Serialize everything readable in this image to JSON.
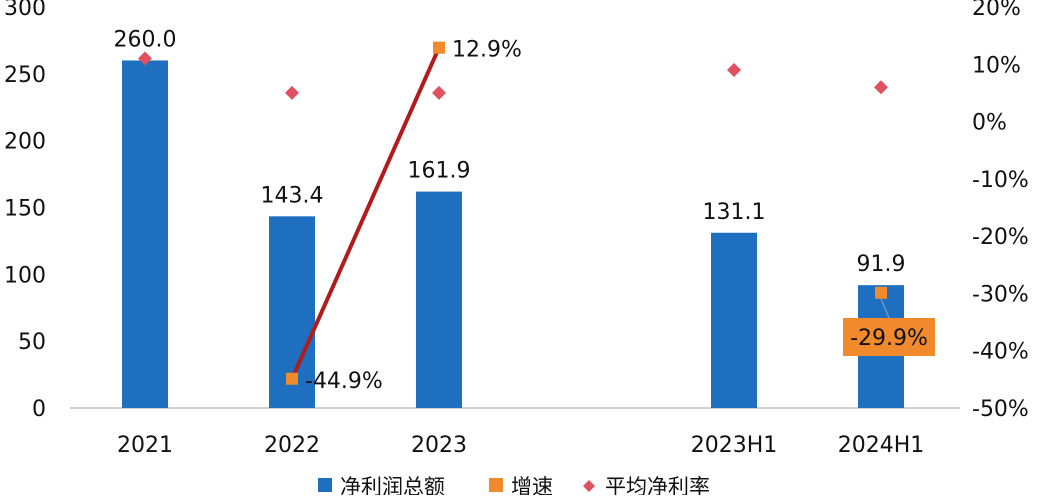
{
  "chart_data": {
    "type": "bar",
    "categories": [
      "2021",
      "2022",
      "2023",
      "2023H1",
      "2024H1"
    ],
    "series": [
      {
        "name": "净利润总额",
        "type": "bar",
        "axis": "left",
        "color": "#1f6fc0",
        "values": [
          260.0,
          143.4,
          161.9,
          131.1,
          91.9
        ],
        "labels": [
          "260.0",
          "143.4",
          "161.9",
          "131.1",
          "91.9"
        ]
      },
      {
        "name": "增速",
        "type": "line-markers",
        "axis": "right",
        "color": "#f08a2c",
        "line_color": "#b01c1c",
        "values": [
          null,
          -44.9,
          12.9,
          null,
          -29.9
        ],
        "labels": [
          "",
          "-44.9%",
          "12.9%",
          "",
          "-29.9%"
        ],
        "connect": [
          1,
          2
        ]
      },
      {
        "name": "平均净利率",
        "type": "scatter",
        "axis": "right",
        "color": "#e05060",
        "values": [
          11,
          5,
          5,
          9,
          6
        ]
      }
    ],
    "y_left": {
      "min": 0,
      "max": 300,
      "ticks": [
        "0",
        "50",
        "100",
        "150",
        "200",
        "250",
        "300"
      ]
    },
    "y_right": {
      "min": -50,
      "max": 20,
      "ticks": [
        "-50%",
        "-40%",
        "-30%",
        "-20%",
        "-10%",
        "0%",
        "10%",
        "20%"
      ]
    },
    "grid": false,
    "legend": "bottom"
  },
  "legend": {
    "items": [
      {
        "label": "净利润总额",
        "color": "#1f6fc0",
        "shape": "square"
      },
      {
        "label": "增速",
        "color": "#f08a2c",
        "shape": "square"
      },
      {
        "label": "平均净利率",
        "color": "#e05060",
        "shape": "diamond"
      }
    ]
  }
}
